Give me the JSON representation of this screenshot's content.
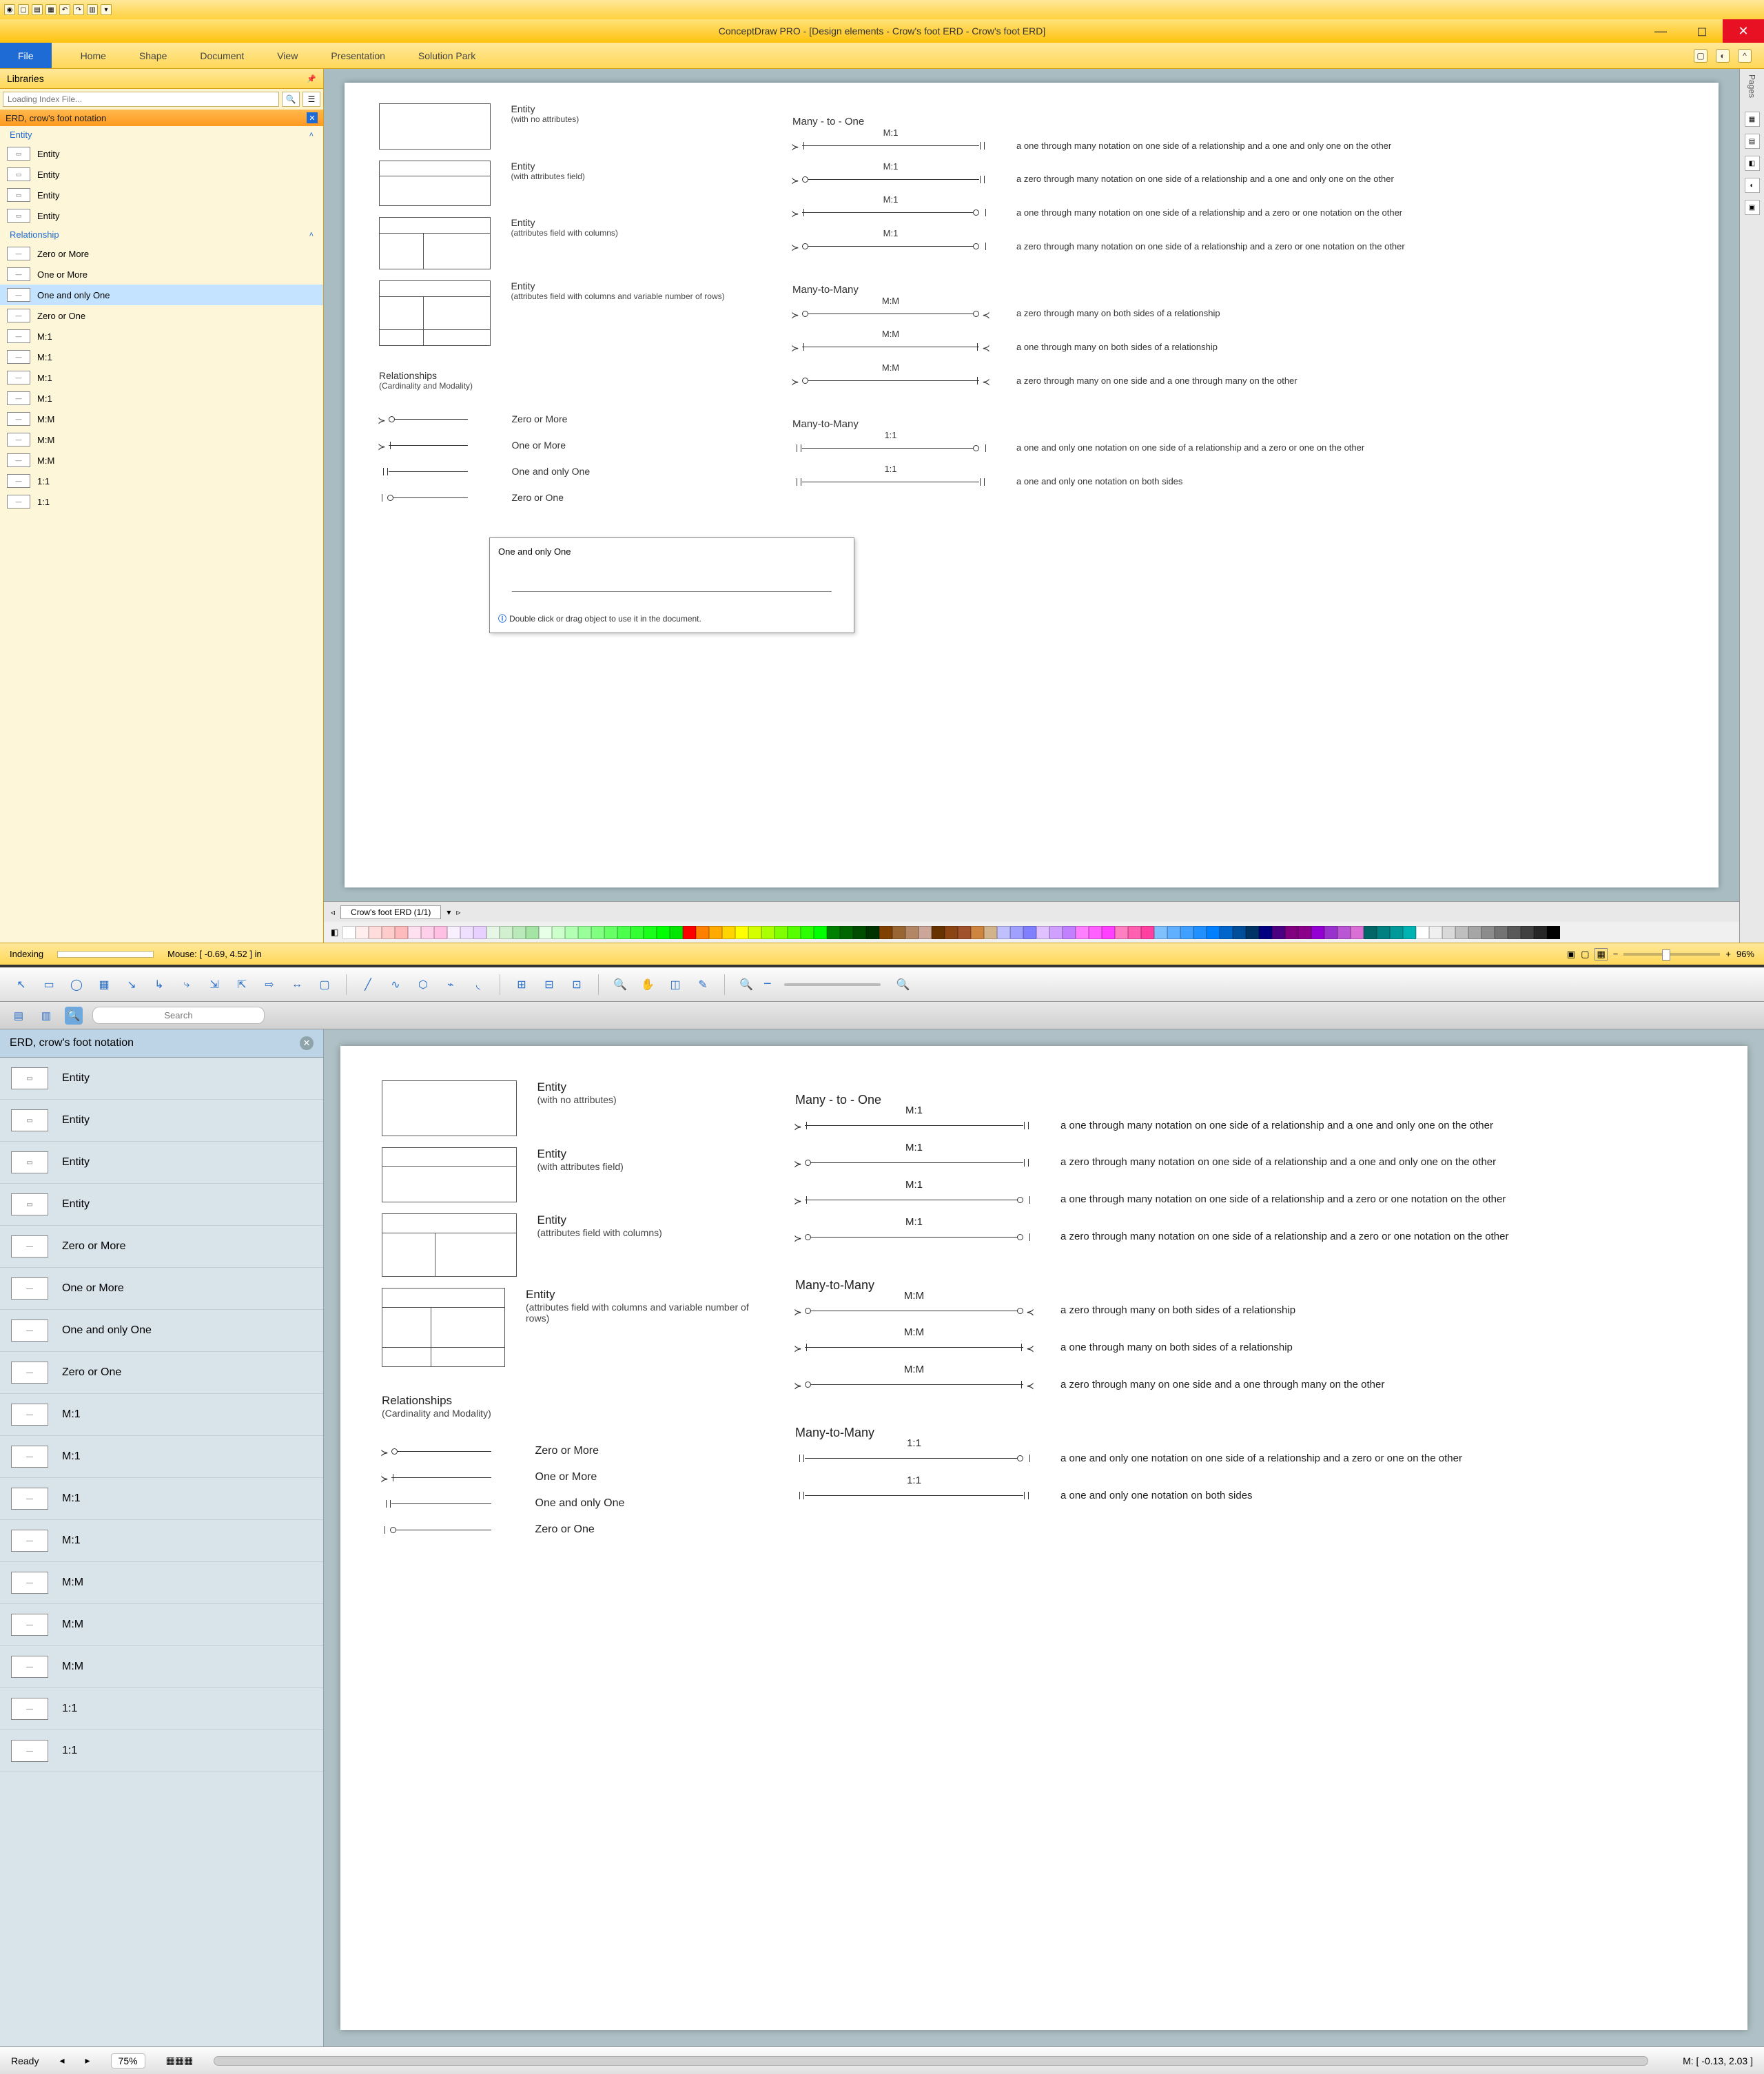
{
  "app1": {
    "title": "ConceptDraw PRO - [Design elements - Crow's foot ERD - Crow's foot ERD]",
    "menu": {
      "file": "File",
      "home": "Home",
      "shape": "Shape",
      "document": "Document",
      "view": "View",
      "presentation": "Presentation",
      "solution": "Solution Park"
    },
    "libraries_label": "Libraries",
    "search_placeholder": "Loading Index File...",
    "libname": "ERD, crow's foot notation",
    "section_entity": "Entity",
    "section_rel": "Relationship",
    "entity_items": [
      "Entity",
      "Entity",
      "Entity",
      "Entity"
    ],
    "rel_items": [
      "Zero or More",
      "One or More",
      "One and only One",
      "Zero or One",
      "M:1",
      "M:1",
      "M:1",
      "M:1",
      "M:M",
      "M:M",
      "M:M",
      "1:1",
      "1:1"
    ],
    "sel_rel_index": 2,
    "tooltip": {
      "title": "One and only One",
      "note": "Double click or drag object to use it in the document."
    },
    "tab_label": "Crow's foot ERD (1/1)",
    "status_index": "Indexing",
    "status_mouse": "Mouse: [ -0.69, 4.52 ] in",
    "zoom": "96%"
  },
  "app2": {
    "search_placeholder": "Search",
    "libname": "ERD, crow's foot notation",
    "entity_items": [
      "Entity",
      "Entity",
      "Entity",
      "Entity"
    ],
    "rel_items": [
      "Zero or More",
      "One or More",
      "One and only One",
      "Zero or One",
      "M:1",
      "M:1",
      "M:1",
      "M:1",
      "M:M",
      "M:M",
      "M:M",
      "1:1",
      "1:1"
    ],
    "status_ready": "Ready",
    "status_mouse": "M: [ -0.13, 2.03 ]",
    "zoom": "75%"
  },
  "doc": {
    "h_m1": "Many - to - One",
    "h_mm": "Many-to-Many",
    "h_mm2": "Many-to-Many",
    "entities": [
      {
        "t": "Entity",
        "s": "(with no attributes)"
      },
      {
        "t": "Entity",
        "s": "(with attributes field)"
      },
      {
        "t": "Entity",
        "s": "(attributes field with columns)"
      },
      {
        "t": "Entity",
        "s": "(attributes field with columns and variable number of rows)"
      }
    ],
    "rel_header": "Relationships",
    "rel_sub": "(Cardinality and Modality)",
    "basics": [
      {
        "l": "zero_many",
        "n": "Zero or More"
      },
      {
        "l": "one_many",
        "n": "One or More"
      },
      {
        "l": "one_one",
        "n": "One and only One"
      },
      {
        "l": "zero_one",
        "n": "Zero or One"
      }
    ],
    "m1": [
      {
        "lbl": "M:1",
        "l": "one_many",
        "r": "one_one",
        "d": "a one through many notation on one side of a relationship and a one and only one on the other"
      },
      {
        "lbl": "M:1",
        "l": "zero_many",
        "r": "one_one",
        "d": "a zero through many notation on one side of a relationship and a one and only one on the other"
      },
      {
        "lbl": "M:1",
        "l": "one_many",
        "r": "zero_one",
        "d": "a one through many notation on one side of a relationship and a zero or one notation on the other"
      },
      {
        "lbl": "M:1",
        "l": "zero_many",
        "r": "zero_one",
        "d": "a zero through many notation on one side of a relationship and a zero or one notation on the other"
      }
    ],
    "mm": [
      {
        "lbl": "M:M",
        "l": "zero_many",
        "r": "zero_many_r",
        "d": "a zero through many on both sides of a relationship"
      },
      {
        "lbl": "M:M",
        "l": "one_many",
        "r": "one_many_r",
        "d": "a one through many on both sides of a relationship"
      },
      {
        "lbl": "M:M",
        "l": "zero_many",
        "r": "one_many_r",
        "d": "a zero through many on one side and a one through many on the other"
      }
    ],
    "oo": [
      {
        "lbl": "1:1",
        "l": "one_one",
        "r": "zero_one",
        "d": "a one and only one notation on one side of a relationship and a zero or one on the other"
      },
      {
        "lbl": "1:1",
        "l": "one_one",
        "r": "one_one",
        "d": "a one and only one notation on both sides"
      }
    ]
  },
  "palette": [
    "#ffffff",
    "#fee",
    "#fdd",
    "#fcc",
    "#fbb",
    "#ffe0f0",
    "#ffd0ea",
    "#ffc0e4",
    "#f8f0ff",
    "#f0e0ff",
    "#e8d0ff",
    "#e6f7e6",
    "#d0f0d0",
    "#baeaba",
    "#a4e4a4",
    "#e6ffe6",
    "#ccffcc",
    "#b3ffb3",
    "#99ff99",
    "#80ff80",
    "#66ff66",
    "#4dff4d",
    "#33ff33",
    "#1aff1a",
    "#00ff00",
    "#00e600",
    "#ff0000",
    "#ff8000",
    "#ffaa00",
    "#ffd400",
    "#ffff00",
    "#d4ff00",
    "#aaff00",
    "#80ff00",
    "#55ff00",
    "#2bff00",
    "#00ff00",
    "#008000",
    "#006600",
    "#004d00",
    "#003300",
    "#804000",
    "#996633",
    "#b38666",
    "#cca699",
    "#663300",
    "#8b4513",
    "#a0522d",
    "#cd853f",
    "#d2b48c",
    "#c0c0ff",
    "#a0a0ff",
    "#8080ff",
    "#e0c0ff",
    "#d0a0ff",
    "#c080ff",
    "#ff80ff",
    "#ff60ff",
    "#ff40ff",
    "#ff80c0",
    "#ff60b0",
    "#ff40a0",
    "#80c0ff",
    "#60b0ff",
    "#40a0ff",
    "#2090ff",
    "#0080ff",
    "#0066cc",
    "#004d99",
    "#003366",
    "#000080",
    "#4b0082",
    "#800080",
    "#8b008b",
    "#9400d3",
    "#9932cc",
    "#ba55d3",
    "#da70d6",
    "#006666",
    "#008080",
    "#009999",
    "#00b3b3",
    "#ffffff",
    "#f0f0f0",
    "#d9d9d9",
    "#bfbfbf",
    "#a6a6a6",
    "#8c8c8c",
    "#737373",
    "#595959",
    "#404040",
    "#262626",
    "#000000"
  ]
}
